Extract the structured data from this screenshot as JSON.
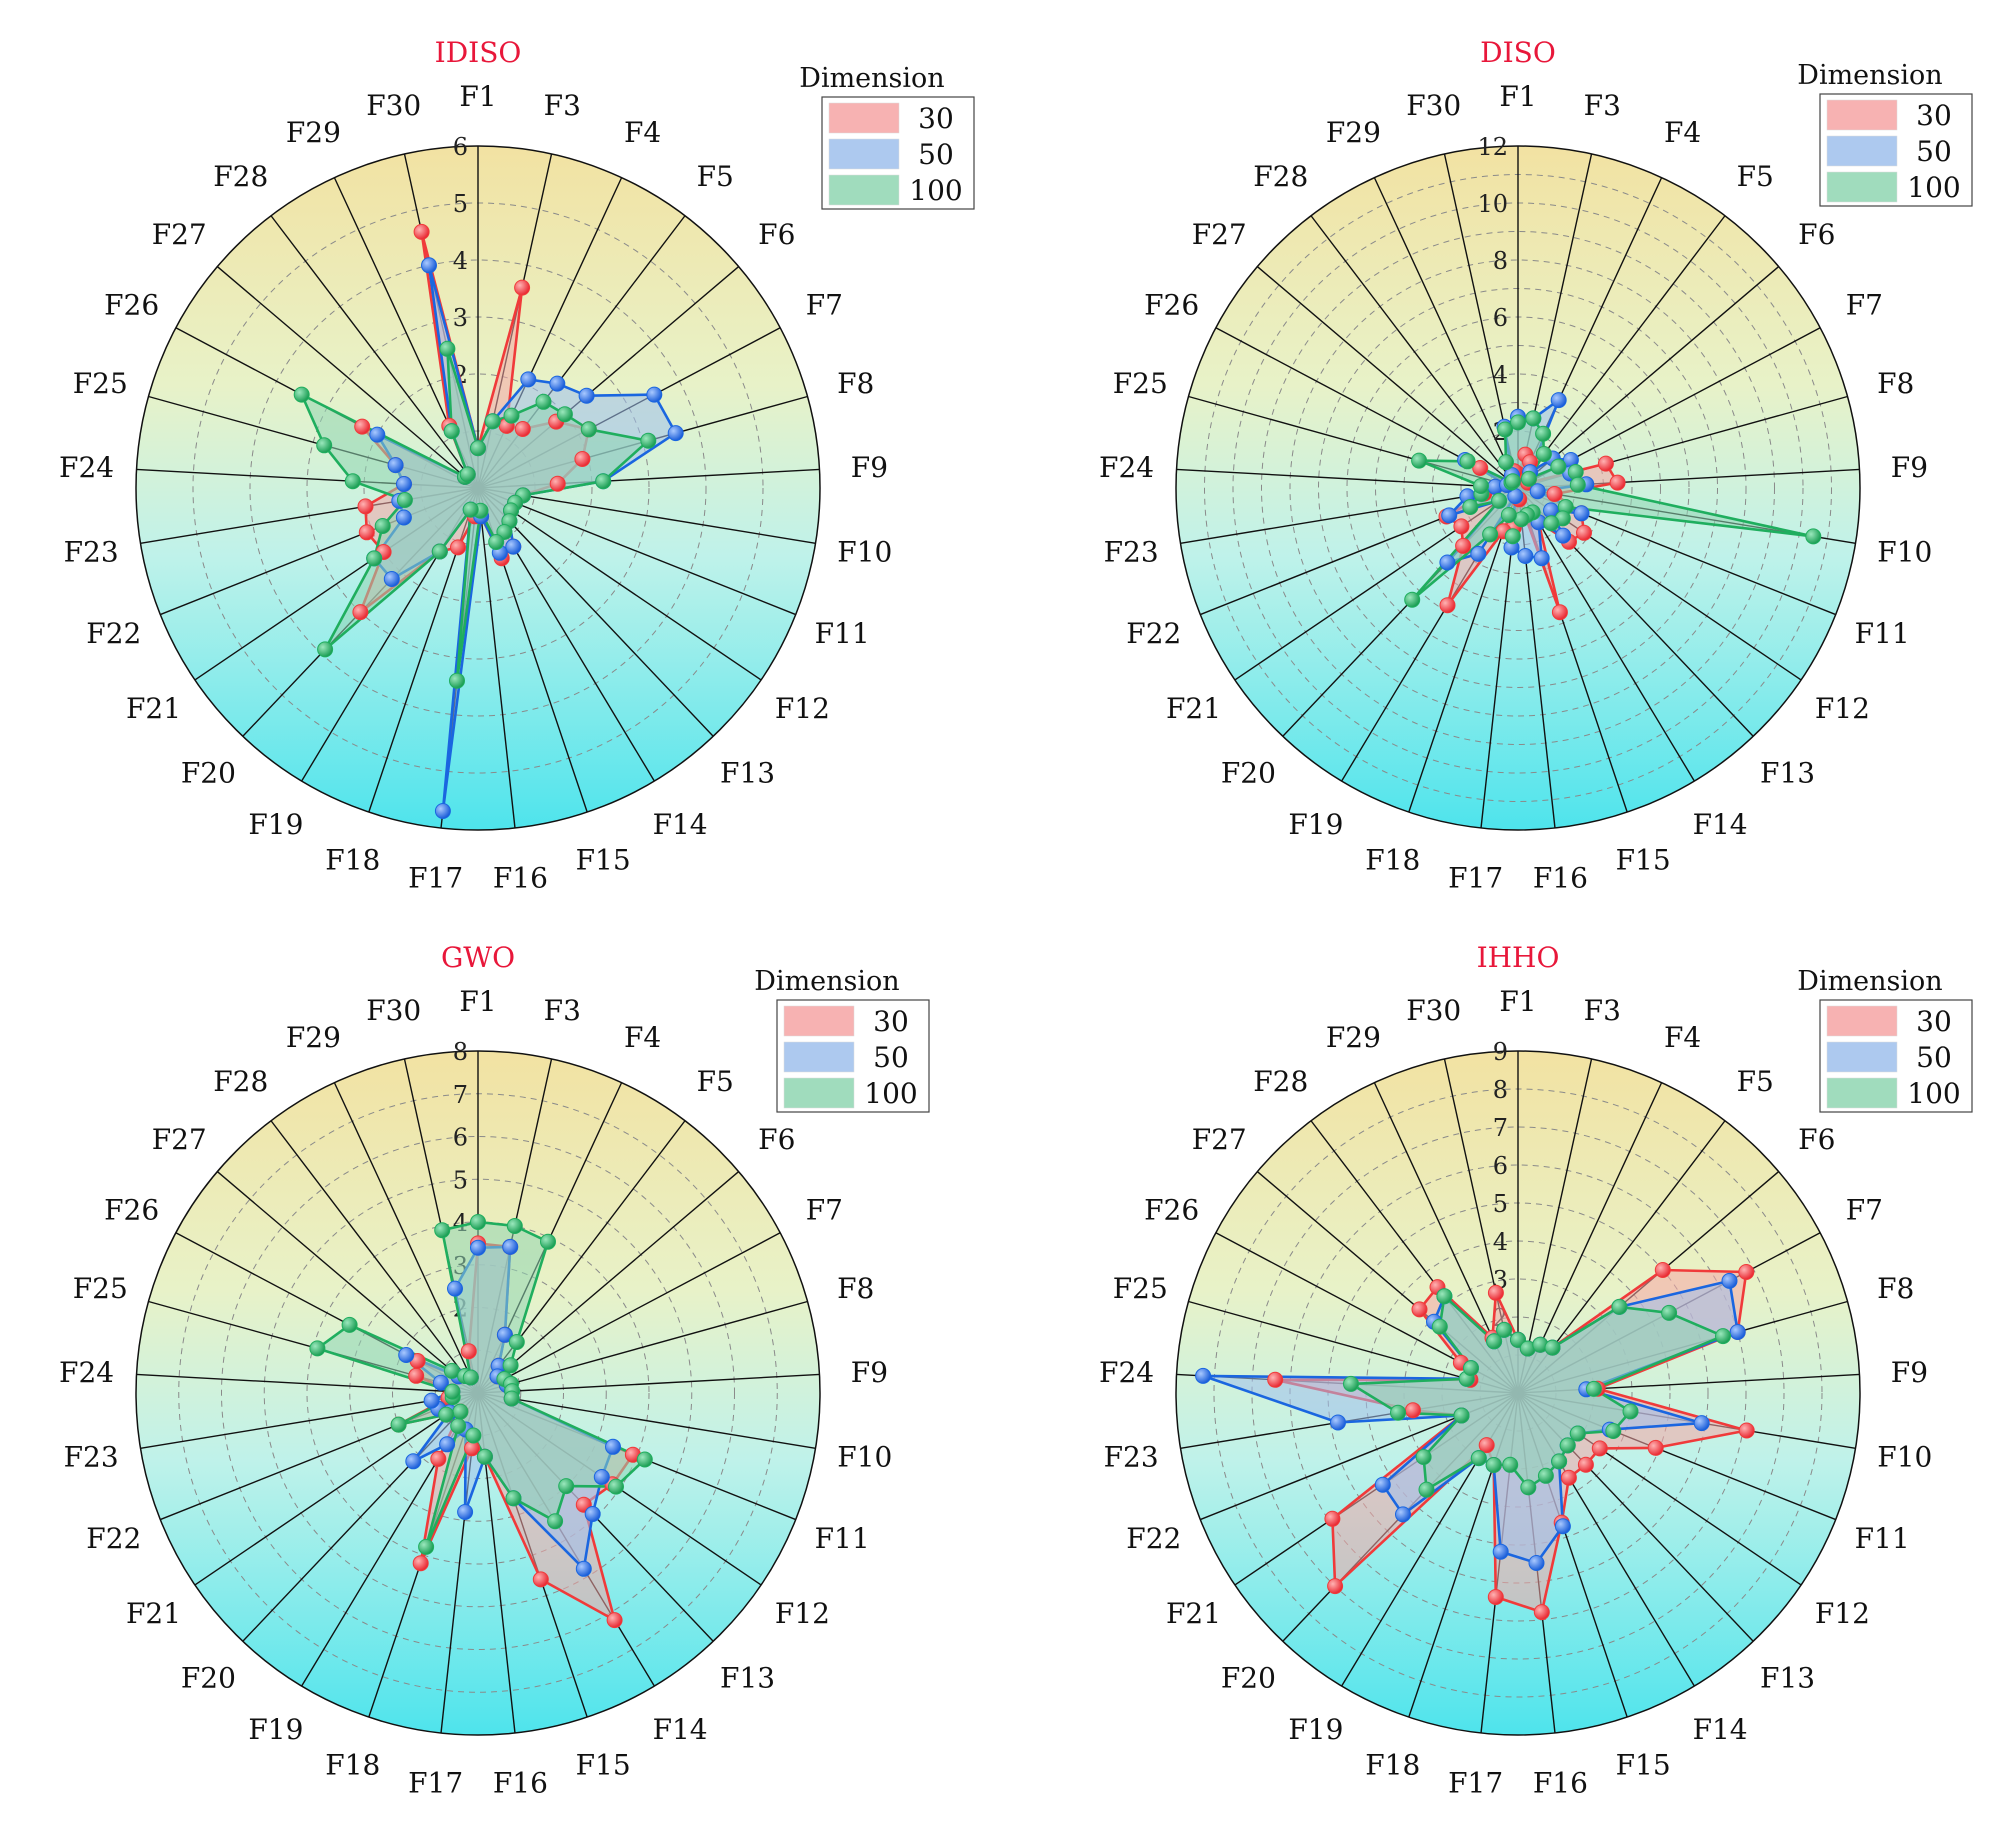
{
  "chart_data": [
    {
      "type": "radar",
      "title": "IDISO",
      "categories": [
        "F1",
        "F3",
        "F4",
        "F5",
        "F6",
        "F7",
        "F8",
        "F9",
        "F10",
        "F11",
        "F12",
        "F13",
        "F14",
        "F15",
        "F16",
        "F17",
        "F18",
        "F19",
        "F20",
        "F21",
        "F22",
        "F23",
        "F24",
        "F25",
        "F26",
        "F27",
        "F28",
        "F29",
        "F30"
      ],
      "ticks": [
        "2",
        "3",
        "4",
        "5",
        "6"
      ],
      "rmax": 6,
      "legend_title": "Dimension",
      "series": [
        {
          "name": "30",
          "color": "#f03a3a",
          "fill": "#f6a5a5",
          "values": [
            0.7,
            3.6,
            1.2,
            1.3,
            1.8,
            2.2,
            1.9,
            1.4,
            0.8,
            0.7,
            0.7,
            0.8,
            1.2,
            1.3,
            0.5,
            0.5,
            1.1,
            1.3,
            3.0,
            2.0,
            2.1,
            2.0,
            1.3,
            1.5,
            2.3,
            0.3,
            0.3,
            1.2,
            4.6
          ]
        },
        {
          "name": "50",
          "color": "#1a66e0",
          "fill": "#9fc0ec",
          "values": [
            0.7,
            1.2,
            2.1,
            2.3,
            2.5,
            3.5,
            3.6,
            2.2,
            0.8,
            0.7,
            0.7,
            0.8,
            1.2,
            1.2,
            0.5,
            5.7,
            0.4,
            1.3,
            2.2,
            2.2,
            1.4,
            1.4,
            1.3,
            1.5,
            2.0,
            0.3,
            0.3,
            1.1,
            4.0
          ]
        },
        {
          "name": "100",
          "color": "#1fae5e",
          "fill": "#8fd6b2",
          "values": [
            0.7,
            1.2,
            1.4,
            1.9,
            2.0,
            2.2,
            3.1,
            2.2,
            0.8,
            0.7,
            0.7,
            0.8,
            0.9,
            1.0,
            0.4,
            3.4,
            0.4,
            1.3,
            3.9,
            2.2,
            1.8,
            1.3,
            2.2,
            2.8,
            3.5,
            0.3,
            0.3,
            1.1,
            2.5
          ]
        }
      ]
    },
    {
      "type": "radar",
      "title": "DISO",
      "categories": [
        "F1",
        "F3",
        "F4",
        "F5",
        "F6",
        "F7",
        "F8",
        "F9",
        "F10",
        "F11",
        "F12",
        "F13",
        "F14",
        "F15",
        "F16",
        "F17",
        "F18",
        "F19",
        "F20",
        "F21",
        "F22",
        "F23",
        "F24",
        "F25",
        "F26",
        "F27",
        "F28",
        "F29",
        "F30"
      ],
      "ticks": [
        "2",
        "4",
        "6",
        "8",
        "10",
        "12"
      ],
      "rmax": 12,
      "legend_title": "Dimension",
      "series": [
        {
          "name": "30",
          "color": "#f03a3a",
          "fill": "#f6a5a5",
          "values": [
            0.5,
            1.2,
            1.0,
            1.5,
            0.5,
            0.4,
            3.2,
            3.5,
            1.3,
            2.4,
            2.8,
            2.6,
            1.4,
            4.6,
            0.4,
            1.4,
            1.6,
            4.8,
            2.8,
            2.4,
            2.7,
            1.2,
            0.8,
            0.4,
            1.5,
            0.3,
            0.3,
            0.5,
            0.6
          ]
        },
        {
          "name": "50",
          "color": "#1a66e0",
          "fill": "#9fc0ec",
          "values": [
            2.5,
            2.5,
            3.4,
            0.7,
            1.6,
            2.1,
            1.9,
            2.4,
            0.7,
            2.4,
            1.4,
            2.3,
            1.4,
            2.6,
            2.4,
            2.1,
            0.3,
            2.7,
            3.6,
            0.8,
            2.6,
            1.8,
            0.8,
            0.4,
            2.1,
            0.3,
            0.3,
            0.5,
            2.2
          ]
        },
        {
          "name": "100",
          "color": "#1fae5e",
          "fill": "#8fd6b2",
          "values": [
            2.3,
            2.5,
            2.1,
            1.5,
            0.5,
            1.6,
            2.1,
            2.1,
            10.5,
            1.8,
            1.9,
            1.7,
            1.0,
            1.0,
            1.1,
            1.7,
            1.0,
            1.9,
            5.4,
            0.8,
            1.8,
            1.3,
            1.3,
            3.6,
            2.0,
            0.3,
            0.3,
            1.0,
            2.1
          ]
        }
      ]
    },
    {
      "type": "radar",
      "title": "GWO",
      "categories": [
        "F1",
        "F3",
        "F4",
        "F5",
        "F6",
        "F7",
        "F8",
        "F9",
        "F10",
        "F11",
        "F12",
        "F13",
        "F14",
        "F15",
        "F16",
        "F17",
        "F18",
        "F19",
        "F20",
        "F21",
        "F22",
        "F23",
        "F24",
        "F25",
        "F26",
        "F27",
        "F28",
        "F29",
        "F30"
      ],
      "ticks": [
        "2",
        "3",
        "4",
        "5",
        "6",
        "7",
        "8"
      ],
      "rmax": 8,
      "legend_title": "Dimension",
      "series": [
        {
          "name": "30",
          "color": "#f03a3a",
          "fill": "#f6a5a5",
          "values": [
            3.5,
            3.5,
            1.5,
            0.8,
            0.6,
            0.7,
            0.7,
            0.8,
            0.8,
            3.9,
            3.8,
            3.6,
            6.2,
            4.6,
            1.5,
            1.3,
            4.2,
            1.8,
            0.6,
            0.9,
            2.0,
            0.7,
            0.6,
            1.5,
            1.6,
            0.6,
            0.5,
            0.4,
            1.0
          ]
        },
        {
          "name": "50",
          "color": "#1a66e0",
          "fill": "#9fc0ec",
          "values": [
            3.4,
            3.5,
            1.5,
            0.8,
            0.6,
            0.7,
            0.7,
            0.8,
            0.8,
            3.4,
            3.5,
            3.9,
            4.8,
            2.6,
            1.5,
            2.8,
            0.9,
            1.4,
            2.2,
            0.8,
            1.0,
            1.1,
            0.6,
            0.9,
            1.9,
            0.6,
            0.5,
            0.4,
            2.5
          ]
        },
        {
          "name": "100",
          "color": "#1fae5e",
          "fill": "#8fd6b2",
          "values": [
            4.0,
            4.0,
            3.9,
            1.5,
            1.0,
            0.7,
            0.8,
            0.8,
            0.8,
            4.2,
            3.9,
            3.0,
            3.5,
            2.6,
            1.5,
            1.0,
            3.8,
            0.9,
            0.6,
            0.9,
            2.0,
            0.6,
            0.6,
            3.9,
            3.4,
            0.8,
            0.5,
            0.4,
            3.9
          ]
        }
      ]
    },
    {
      "type": "radar",
      "title": "IHHO",
      "categories": [
        "F1",
        "F3",
        "F4",
        "F5",
        "F6",
        "F7",
        "F8",
        "F9",
        "F10",
        "F11",
        "F12",
        "F13",
        "F14",
        "F15",
        "F16",
        "F17",
        "F18",
        "F19",
        "F20",
        "F21",
        "F22",
        "F23",
        "F24",
        "F25",
        "F26",
        "F27",
        "F28",
        "F29",
        "F30"
      ],
      "ticks": [
        "2",
        "3",
        "4",
        "5",
        "6",
        "7",
        "8",
        "9"
      ],
      "rmax": 9,
      "legend_title": "Dimension",
      "series": [
        {
          "name": "30",
          "color": "#f03a3a",
          "fill": "#f6a5a5",
          "values": [
            1.4,
            1.2,
            1.4,
            1.5,
            5.0,
            6.8,
            6.0,
            2.1,
            6.1,
            3.9,
            2.6,
            2.6,
            2.6,
            3.6,
            5.8,
            5.4,
            2.0,
            1.6,
            7.0,
            5.9,
            1.6,
            2.8,
            6.4,
            1.3,
            1.7,
            3.4,
            3.5,
            1.6,
            2.7
          ]
        },
        {
          "name": "50",
          "color": "#1a66e0",
          "fill": "#9fc0ec",
          "values": [
            1.4,
            1.2,
            1.4,
            1.5,
            3.5,
            6.3,
            6.0,
            1.8,
            4.9,
            2.6,
            1.9,
            1.9,
            2.1,
            3.7,
            4.5,
            4.2,
            2.0,
            2.0,
            4.4,
            4.3,
            1.6,
            4.8,
            8.3,
            1.4,
            1.4,
            2.9,
            3.2,
            1.5,
            1.7
          ]
        },
        {
          "name": "100",
          "color": "#1fae5e",
          "fill": "#8fd6b2",
          "values": [
            1.4,
            1.2,
            1.4,
            1.5,
            3.5,
            4.5,
            5.6,
            2.0,
            3.0,
            2.7,
            1.9,
            1.9,
            2.1,
            2.3,
            2.5,
            1.9,
            2.0,
            2.0,
            3.5,
            3.0,
            1.6,
            3.2,
            4.4,
            1.4,
            1.4,
            2.7,
            3.2,
            1.5,
            1.7
          ]
        }
      ]
    }
  ]
}
